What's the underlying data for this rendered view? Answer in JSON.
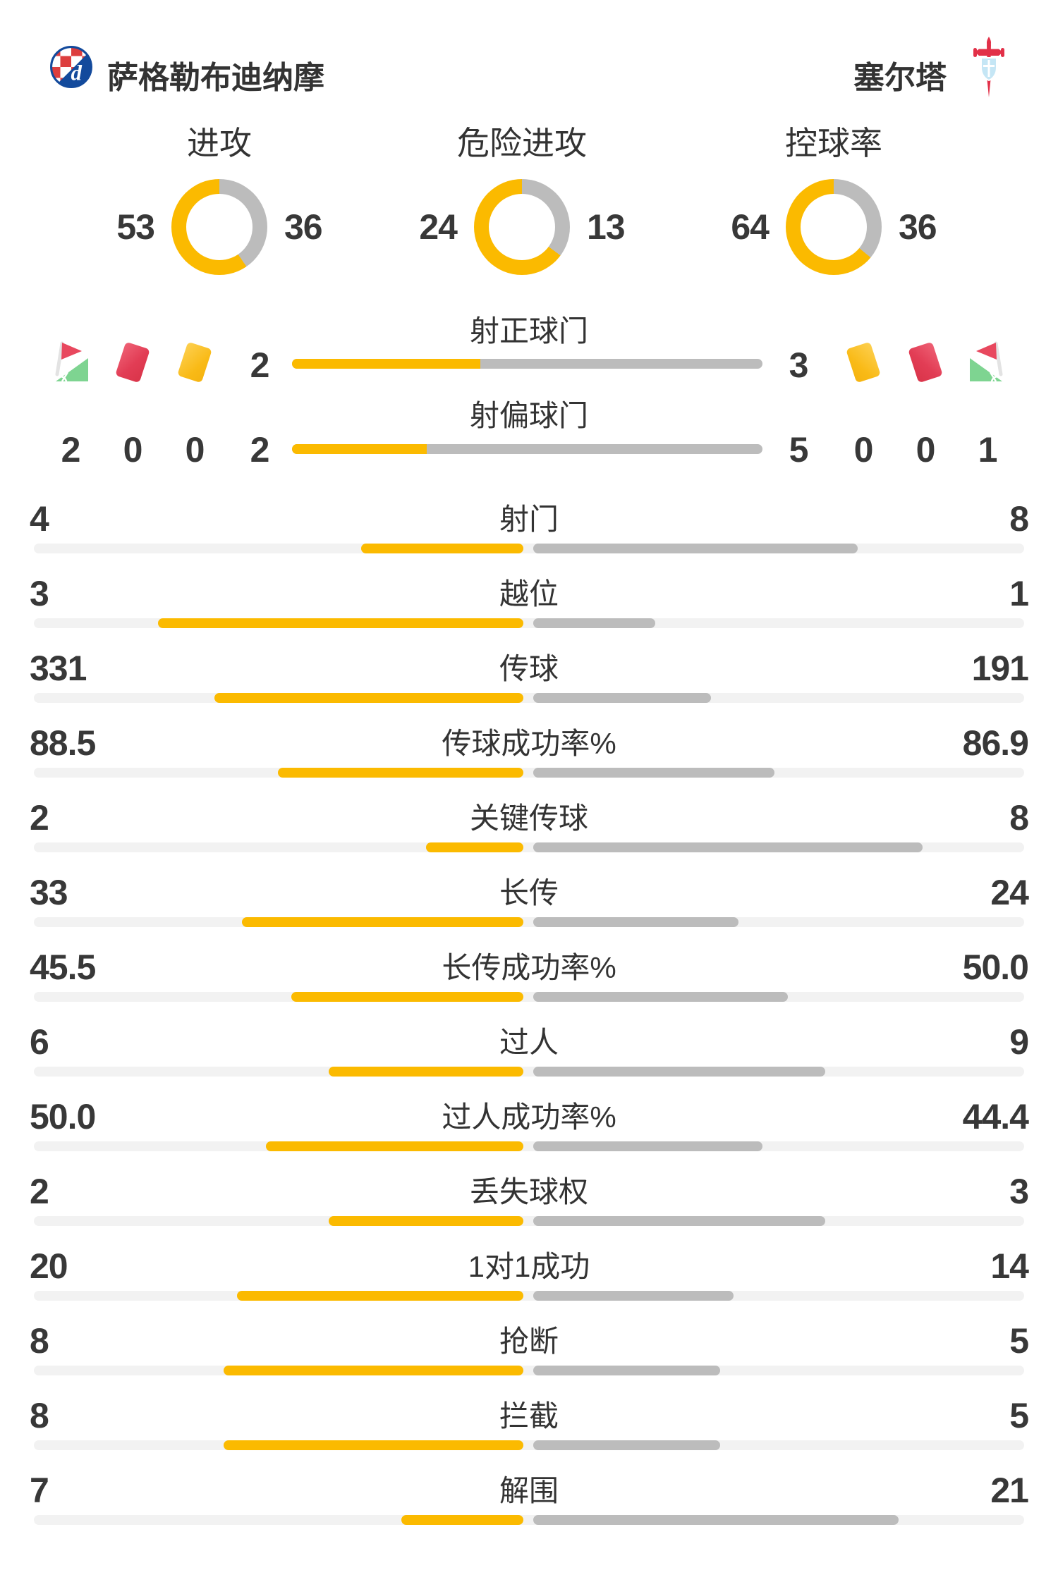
{
  "header": {
    "home_team": "萨格勒布迪纳摩",
    "away_team": "塞尔塔"
  },
  "colors": {
    "home_bar": "#FBBA00",
    "away_bar": "#BCBCBC",
    "bar_track": "#F2F2F2",
    "text": "#383838",
    "red_card": "#E23D55",
    "yellow_card": "#F9BA16",
    "corner_flag_green": "#7ED491"
  },
  "chart_data": {
    "type": "bar",
    "legend_position": "none",
    "home_color": "#FBBA00",
    "away_color": "#BCBCBC",
    "donut_charts": [
      {
        "label": "进攻",
        "home": 53,
        "away": 36
      },
      {
        "label": "危险进攻",
        "home": 24,
        "away": 13
      },
      {
        "label": "控球率",
        "home": 64,
        "away": 36
      }
    ],
    "discipline": {
      "home": {
        "corners": 2,
        "red_cards": 0,
        "yellow_cards": 0
      },
      "away": {
        "corners": 1,
        "red_cards": 0,
        "yellow_cards": 0
      }
    },
    "shot_bars": [
      {
        "label": "射正球门",
        "home": 2,
        "away": 3
      },
      {
        "label": "射偏球门",
        "home": 2,
        "away": 5
      }
    ],
    "stat_rows": [
      {
        "label": "射门",
        "home": "4",
        "away": "8"
      },
      {
        "label": "越位",
        "home": "3",
        "away": "1"
      },
      {
        "label": "传球",
        "home": "331",
        "away": "191"
      },
      {
        "label": "传球成功率%",
        "home": "88.5",
        "away": "86.9"
      },
      {
        "label": "关键传球",
        "home": "2",
        "away": "8"
      },
      {
        "label": "长传",
        "home": "33",
        "away": "24"
      },
      {
        "label": "长传成功率%",
        "home": "45.5",
        "away": "50.0"
      },
      {
        "label": "过人",
        "home": "6",
        "away": "9"
      },
      {
        "label": "过人成功率%",
        "home": "50.0",
        "away": "44.4"
      },
      {
        "label": "丢失球权",
        "home": "2",
        "away": "3"
      },
      {
        "label": "1对1成功",
        "home": "20",
        "away": "14"
      },
      {
        "label": "抢断",
        "home": "8",
        "away": "5"
      },
      {
        "label": "拦截",
        "home": "8",
        "away": "5"
      },
      {
        "label": "解围",
        "home": "7",
        "away": "21"
      }
    ]
  }
}
